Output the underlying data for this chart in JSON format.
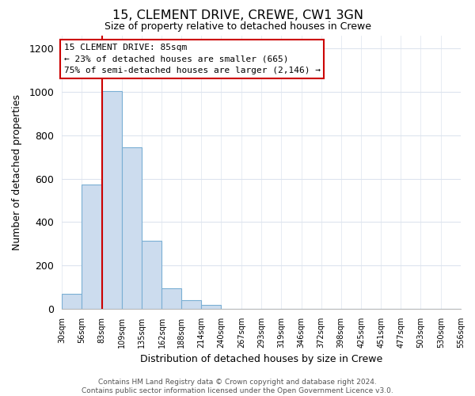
{
  "title": "15, CLEMENT DRIVE, CREWE, CW1 3GN",
  "subtitle": "Size of property relative to detached houses in Crewe",
  "xlabel": "Distribution of detached houses by size in Crewe",
  "ylabel": "Number of detached properties",
  "bar_edges": [
    30,
    56,
    83,
    109,
    135,
    162,
    188,
    214,
    240,
    267,
    293,
    319,
    346,
    372,
    398,
    425,
    451,
    477,
    503,
    530,
    556
  ],
  "bar_heights": [
    70,
    575,
    1005,
    745,
    315,
    95,
    40,
    20,
    0,
    0,
    0,
    0,
    0,
    0,
    0,
    0,
    0,
    0,
    0,
    0
  ],
  "tick_labels": [
    "30sqm",
    "56sqm",
    "83sqm",
    "109sqm",
    "135sqm",
    "162sqm",
    "188sqm",
    "214sqm",
    "240sqm",
    "267sqm",
    "293sqm",
    "319sqm",
    "346sqm",
    "372sqm",
    "398sqm",
    "425sqm",
    "451sqm",
    "477sqm",
    "503sqm",
    "530sqm",
    "556sqm"
  ],
  "property_line_x": 83,
  "bar_color": "#ccdcee",
  "bar_edge_color": "#7aafd4",
  "line_color": "#cc0000",
  "annotation_line1": "15 CLEMENT DRIVE: 85sqm",
  "annotation_line2": "← 23% of detached houses are smaller (665)",
  "annotation_line3": "75% of semi-detached houses are larger (2,146) →",
  "annotation_box_color": "#ffffff",
  "annotation_box_edge": "#cc0000",
  "ylim": [
    0,
    1260
  ],
  "yticks": [
    0,
    200,
    400,
    600,
    800,
    1000,
    1200
  ],
  "footer_text": "Contains HM Land Registry data © Crown copyright and database right 2024.\nContains public sector information licensed under the Open Government Licence v3.0.",
  "bg_color": "#ffffff",
  "grid_color": "#dde4ee"
}
